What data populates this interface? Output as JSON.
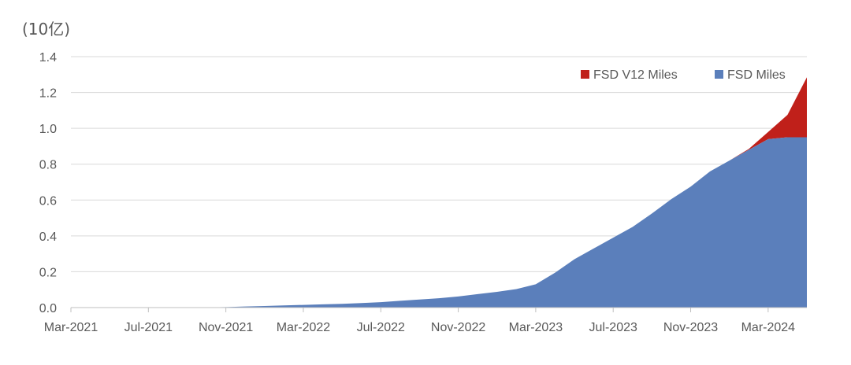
{
  "chart_data": {
    "type": "area",
    "stacked": true,
    "unit_label": "(10亿)",
    "title": "",
    "xlabel": "",
    "ylabel": "",
    "ylim": [
      0,
      1.4
    ],
    "yticks": [
      0.0,
      0.2,
      0.4,
      0.6,
      0.8,
      1.0,
      1.2,
      1.4
    ],
    "ytick_labels": [
      "0.0",
      "0.2",
      "0.4",
      "0.6",
      "0.8",
      "1.0",
      "1.2",
      "1.4"
    ],
    "xtick_labels": [
      "Mar-2021",
      "Jul-2021",
      "Nov-2021",
      "Mar-2022",
      "Jul-2022",
      "Nov-2022",
      "Mar-2023",
      "Jul-2023",
      "Nov-2023",
      "Mar-2024"
    ],
    "grid": "horizontal",
    "legend_position": "top-right",
    "legend": [
      {
        "name": "FSD V12 Miles",
        "color": "#c0201a"
      },
      {
        "name": "FSD Miles",
        "color": "#5b7fbb"
      }
    ],
    "x": [
      "2021-03",
      "2021-04",
      "2021-05",
      "2021-06",
      "2021-07",
      "2021-08",
      "2021-09",
      "2021-10",
      "2021-11",
      "2021-12",
      "2022-01",
      "2022-02",
      "2022-03",
      "2022-04",
      "2022-05",
      "2022-06",
      "2022-07",
      "2022-08",
      "2022-09",
      "2022-10",
      "2022-11",
      "2022-12",
      "2023-01",
      "2023-02",
      "2023-03",
      "2023-04",
      "2023-05",
      "2023-06",
      "2023-07",
      "2023-08",
      "2023-09",
      "2023-10",
      "2023-11",
      "2023-12",
      "2024-01",
      "2024-02",
      "2024-03",
      "2024-04",
      "2024-05"
    ],
    "series": [
      {
        "name": "FSD Miles",
        "color": "#5b7fbb",
        "values": [
          0.0,
          0.0,
          0.0,
          0.0,
          0.0,
          0.0,
          0.0,
          0.001,
          0.003,
          0.006,
          0.009,
          0.012,
          0.015,
          0.018,
          0.021,
          0.025,
          0.03,
          0.038,
          0.045,
          0.052,
          0.062,
          0.075,
          0.088,
          0.103,
          0.13,
          0.195,
          0.27,
          0.33,
          0.39,
          0.45,
          0.525,
          0.605,
          0.675,
          0.76,
          0.82,
          0.88,
          0.94,
          0.95,
          0.95
        ]
      },
      {
        "name": "FSD V12 Miles",
        "color": "#c0201a",
        "values": [
          0,
          0,
          0,
          0,
          0,
          0,
          0,
          0,
          0,
          0,
          0,
          0,
          0,
          0,
          0,
          0,
          0,
          0,
          0,
          0,
          0,
          0,
          0,
          0,
          0,
          0,
          0,
          0,
          0,
          0,
          0,
          0,
          0,
          0,
          0,
          0.005,
          0.04,
          0.125,
          0.335
        ]
      }
    ]
  }
}
